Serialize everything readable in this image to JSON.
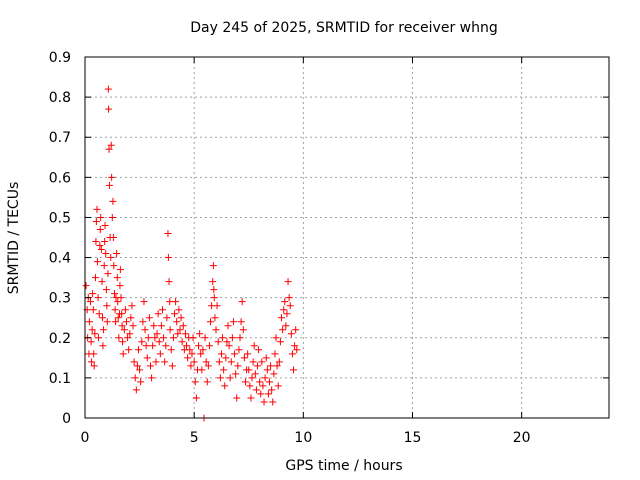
{
  "chart_data": {
    "type": "scatter",
    "title": "Day 245 of 2025, SRMTID for receiver whng",
    "xlabel": "GPS time / hours",
    "ylabel": "SRMTID / TECUs",
    "xlim": [
      0,
      24
    ],
    "ylim": [
      0,
      0.9
    ],
    "xticks": [
      0,
      5,
      10,
      15,
      20
    ],
    "xtick_labels": [
      "0",
      "5",
      "10",
      "15",
      "20"
    ],
    "yticks": [
      0,
      0.1,
      0.2,
      0.3,
      0.4,
      0.5,
      0.6,
      0.7,
      0.8,
      0.9
    ],
    "ytick_labels": [
      "0",
      "0.1",
      "0.2",
      "0.3",
      "0.4",
      "0.5",
      "0.6",
      "0.7",
      "0.8",
      "0.9"
    ],
    "grid": true,
    "marker": "+",
    "series": [
      {
        "name": "SRMTID",
        "color": "#ff0000",
        "points": [
          [
            0.05,
            0.33
          ],
          [
            0.1,
            0.27
          ],
          [
            0.12,
            0.2
          ],
          [
            0.15,
            0.3
          ],
          [
            0.18,
            0.16
          ],
          [
            0.2,
            0.24
          ],
          [
            0.25,
            0.29
          ],
          [
            0.28,
            0.19
          ],
          [
            0.3,
            0.14
          ],
          [
            0.33,
            0.22
          ],
          [
            0.35,
            0.31
          ],
          [
            0.38,
            0.27
          ],
          [
            0.4,
            0.16
          ],
          [
            0.42,
            0.13
          ],
          [
            0.45,
            0.21
          ],
          [
            0.48,
            0.35
          ],
          [
            0.5,
            0.44
          ],
          [
            0.52,
            0.49
          ],
          [
            0.55,
            0.52
          ],
          [
            0.57,
            0.39
          ],
          [
            0.6,
            0.3
          ],
          [
            0.62,
            0.2
          ],
          [
            0.65,
            0.26
          ],
          [
            0.68,
            0.43
          ],
          [
            0.7,
            0.47
          ],
          [
            0.72,
            0.5
          ],
          [
            0.75,
            0.42
          ],
          [
            0.78,
            0.34
          ],
          [
            0.8,
            0.25
          ],
          [
            0.82,
            0.18
          ],
          [
            0.85,
            0.22
          ],
          [
            0.88,
            0.38
          ],
          [
            0.9,
            0.44
          ],
          [
            0.92,
            0.48
          ],
          [
            0.95,
            0.41
          ],
          [
            0.98,
            0.32
          ],
          [
            1.0,
            0.28
          ],
          [
            1.02,
            0.24
          ],
          [
            1.05,
            0.36
          ],
          [
            1.07,
            0.82
          ],
          [
            1.08,
            0.77
          ],
          [
            1.1,
            0.67
          ],
          [
            1.12,
            0.58
          ],
          [
            1.15,
            0.45
          ],
          [
            1.18,
            0.4
          ],
          [
            1.2,
            0.68
          ],
          [
            1.22,
            0.6
          ],
          [
            1.25,
            0.5
          ],
          [
            1.28,
            0.54
          ],
          [
            1.3,
            0.45
          ],
          [
            1.32,
            0.38
          ],
          [
            1.35,
            0.31
          ],
          [
            1.38,
            0.27
          ],
          [
            1.4,
            0.24
          ],
          [
            1.42,
            0.3
          ],
          [
            1.45,
            0.41
          ],
          [
            1.48,
            0.35
          ],
          [
            1.5,
            0.29
          ],
          [
            1.52,
            0.25
          ],
          [
            1.55,
            0.2
          ],
          [
            1.58,
            0.26
          ],
          [
            1.6,
            0.33
          ],
          [
            1.62,
            0.37
          ],
          [
            1.65,
            0.3
          ],
          [
            1.68,
            0.26
          ],
          [
            1.7,
            0.23
          ],
          [
            1.72,
            0.19
          ],
          [
            1.75,
            0.16
          ],
          [
            1.8,
            0.22
          ],
          [
            1.85,
            0.27
          ],
          [
            1.9,
            0.24
          ],
          [
            1.95,
            0.2
          ],
          [
            2.0,
            0.17
          ],
          [
            2.05,
            0.21
          ],
          [
            2.1,
            0.25
          ],
          [
            2.15,
            0.28
          ],
          [
            2.2,
            0.23
          ],
          [
            2.25,
            0.14
          ],
          [
            2.3,
            0.1
          ],
          [
            2.35,
            0.07
          ],
          [
            2.4,
            0.13
          ],
          [
            2.45,
            0.17
          ],
          [
            2.5,
            0.12
          ],
          [
            2.55,
            0.09
          ],
          [
            2.6,
            0.19
          ],
          [
            2.65,
            0.24
          ],
          [
            2.7,
            0.29
          ],
          [
            2.75,
            0.22
          ],
          [
            2.8,
            0.18
          ],
          [
            2.85,
            0.15
          ],
          [
            2.9,
            0.2
          ],
          [
            2.95,
            0.25
          ],
          [
            3.0,
            0.13
          ],
          [
            3.05,
            0.1
          ],
          [
            3.1,
            0.18
          ],
          [
            3.15,
            0.23
          ],
          [
            3.2,
            0.2
          ],
          [
            3.25,
            0.14
          ],
          [
            3.3,
            0.21
          ],
          [
            3.35,
            0.26
          ],
          [
            3.4,
            0.19
          ],
          [
            3.45,
            0.16
          ],
          [
            3.5,
            0.23
          ],
          [
            3.55,
            0.27
          ],
          [
            3.6,
            0.2
          ],
          [
            3.65,
            0.14
          ],
          [
            3.7,
            0.18
          ],
          [
            3.75,
            0.25
          ],
          [
            3.8,
            0.46
          ],
          [
            3.82,
            0.4
          ],
          [
            3.85,
            0.34
          ],
          [
            3.88,
            0.29
          ],
          [
            3.9,
            0.22
          ],
          [
            3.95,
            0.17
          ],
          [
            4.0,
            0.13
          ],
          [
            4.05,
            0.2
          ],
          [
            4.1,
            0.26
          ],
          [
            4.15,
            0.29
          ],
          [
            4.2,
            0.24
          ],
          [
            4.25,
            0.21
          ],
          [
            4.3,
            0.27
          ],
          [
            4.35,
            0.22
          ],
          [
            4.4,
            0.25
          ],
          [
            4.45,
            0.19
          ],
          [
            4.5,
            0.23
          ],
          [
            4.55,
            0.17
          ],
          [
            4.6,
            0.21
          ],
          [
            4.65,
            0.18
          ],
          [
            4.7,
            0.15
          ],
          [
            4.75,
            0.2
          ],
          [
            4.8,
            0.17
          ],
          [
            4.85,
            0.13
          ],
          [
            4.9,
            0.16
          ],
          [
            4.95,
            0.2
          ],
          [
            5.0,
            0.14
          ],
          [
            5.05,
            0.09
          ],
          [
            5.1,
            0.05
          ],
          [
            5.15,
            0.12
          ],
          [
            5.2,
            0.18
          ],
          [
            5.25,
            0.21
          ],
          [
            5.3,
            0.16
          ],
          [
            5.35,
            0.12
          ],
          [
            5.4,
            0.17
          ],
          [
            5.45,
            0.0
          ],
          [
            5.5,
            0.2
          ],
          [
            5.55,
            0.14
          ],
          [
            5.6,
            0.09
          ],
          [
            5.65,
            0.13
          ],
          [
            5.7,
            0.18
          ],
          [
            5.75,
            0.24
          ],
          [
            5.8,
            0.28
          ],
          [
            5.85,
            0.34
          ],
          [
            5.88,
            0.38
          ],
          [
            5.9,
            0.32
          ],
          [
            5.92,
            0.3
          ],
          [
            5.95,
            0.25
          ],
          [
            6.0,
            0.22
          ],
          [
            6.05,
            0.28
          ],
          [
            6.1,
            0.19
          ],
          [
            6.15,
            0.14
          ],
          [
            6.2,
            0.1
          ],
          [
            6.25,
            0.16
          ],
          [
            6.3,
            0.2
          ],
          [
            6.35,
            0.12
          ],
          [
            6.4,
            0.08
          ],
          [
            6.45,
            0.15
          ],
          [
            6.5,
            0.19
          ],
          [
            6.55,
            0.23
          ],
          [
            6.6,
            0.18
          ],
          [
            6.65,
            0.1
          ],
          [
            6.7,
            0.14
          ],
          [
            6.75,
            0.2
          ],
          [
            6.8,
            0.24
          ],
          [
            6.85,
            0.16
          ],
          [
            6.9,
            0.11
          ],
          [
            6.95,
            0.05
          ],
          [
            7.0,
            0.13
          ],
          [
            7.05,
            0.17
          ],
          [
            7.1,
            0.2
          ],
          [
            7.15,
            0.24
          ],
          [
            7.2,
            0.29
          ],
          [
            7.25,
            0.22
          ],
          [
            7.3,
            0.15
          ],
          [
            7.35,
            0.09
          ],
          [
            7.4,
            0.12
          ],
          [
            7.45,
            0.16
          ],
          [
            7.5,
            0.12
          ],
          [
            7.55,
            0.08
          ],
          [
            7.6,
            0.05
          ],
          [
            7.65,
            0.1
          ],
          [
            7.7,
            0.14
          ],
          [
            7.75,
            0.18
          ],
          [
            7.8,
            0.11
          ],
          [
            7.85,
            0.07
          ],
          [
            7.9,
            0.13
          ],
          [
            7.95,
            0.17
          ],
          [
            8.0,
            0.09
          ],
          [
            8.05,
            0.06
          ],
          [
            8.1,
            0.14
          ],
          [
            8.15,
            0.08
          ],
          [
            8.2,
            0.04
          ],
          [
            8.25,
            0.1
          ],
          [
            8.3,
            0.15
          ],
          [
            8.35,
            0.12
          ],
          [
            8.4,
            0.06
          ],
          [
            8.45,
            0.09
          ],
          [
            8.5,
            0.13
          ],
          [
            8.55,
            0.07
          ],
          [
            8.6,
            0.04
          ],
          [
            8.65,
            0.11
          ],
          [
            8.7,
            0.16
          ],
          [
            8.75,
            0.2
          ],
          [
            8.8,
            0.13
          ],
          [
            8.85,
            0.08
          ],
          [
            8.9,
            0.14
          ],
          [
            8.95,
            0.19
          ],
          [
            9.0,
            0.25
          ],
          [
            9.05,
            0.22
          ],
          [
            9.1,
            0.27
          ],
          [
            9.15,
            0.29
          ],
          [
            9.2,
            0.23
          ],
          [
            9.25,
            0.26
          ],
          [
            9.3,
            0.34
          ],
          [
            9.35,
            0.3
          ],
          [
            9.4,
            0.28
          ],
          [
            9.45,
            0.21
          ],
          [
            9.5,
            0.16
          ],
          [
            9.55,
            0.12
          ],
          [
            9.6,
            0.18
          ],
          [
            9.65,
            0.22
          ],
          [
            9.7,
            0.17
          ]
        ]
      }
    ]
  }
}
